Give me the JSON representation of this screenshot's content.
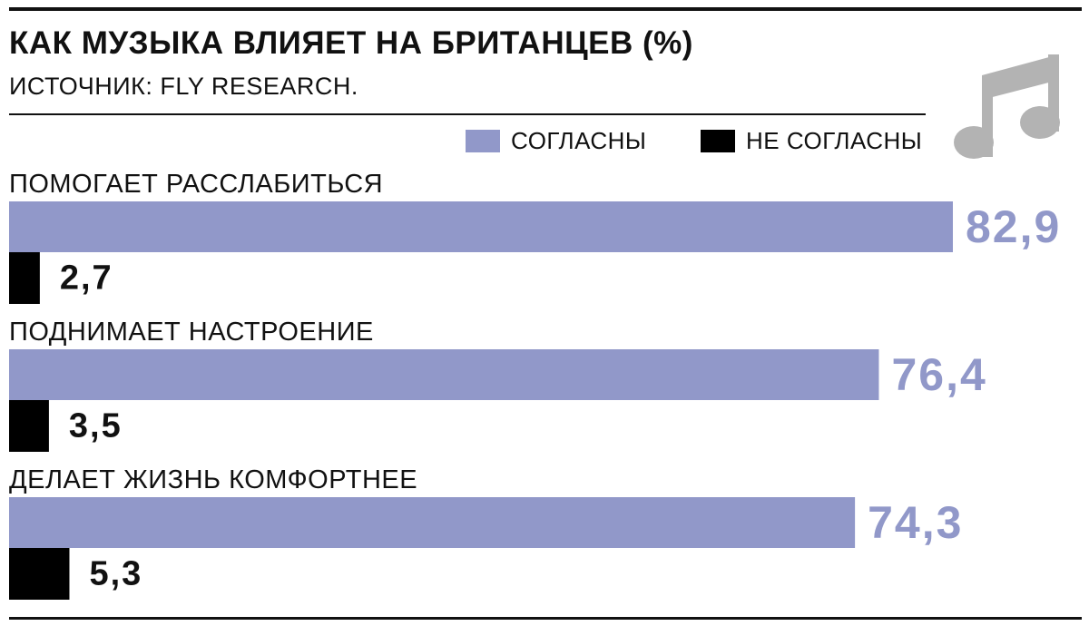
{
  "title": "КАК МУЗЫКА ВЛИЯЕТ НА БРИТАНЦЕВ (%)",
  "source": "ИСТОЧНИК: FLY RESEARCH.",
  "legend": {
    "agree": "СОГЛАСНЫ",
    "disagree": "НЕ СОГЛАСНЫ"
  },
  "icon": "music-note-icon",
  "colors": {
    "agree": "#9198c9",
    "disagree": "#000000",
    "icon": "#b3b3b3"
  },
  "chart_data": {
    "type": "bar",
    "orientation": "horizontal",
    "categories": [
      "ПОМОГАЕТ РАССЛАБИТЬСЯ",
      "ПОДНИМАЕТ НАСТРОЕНИЕ",
      "ДЕЛАЕТ ЖИЗНЬ КОМФОРТНЕЕ"
    ],
    "series": [
      {
        "name": "СОГЛАСНЫ",
        "values": [
          82.9,
          76.4,
          74.3
        ],
        "labels": [
          "82,9",
          "76,4",
          "74,3"
        ]
      },
      {
        "name": "НЕ СОГЛАСНЫ",
        "values": [
          2.7,
          3.5,
          5.3
        ],
        "labels": [
          "2,7",
          "3,5",
          "5,3"
        ]
      }
    ],
    "title": "КАК МУЗЫКА ВЛИЯЕТ НА БРИТАНЦЕВ (%)",
    "xlim": [
      0,
      100
    ],
    "grid": false,
    "legend_position": "top-right"
  }
}
